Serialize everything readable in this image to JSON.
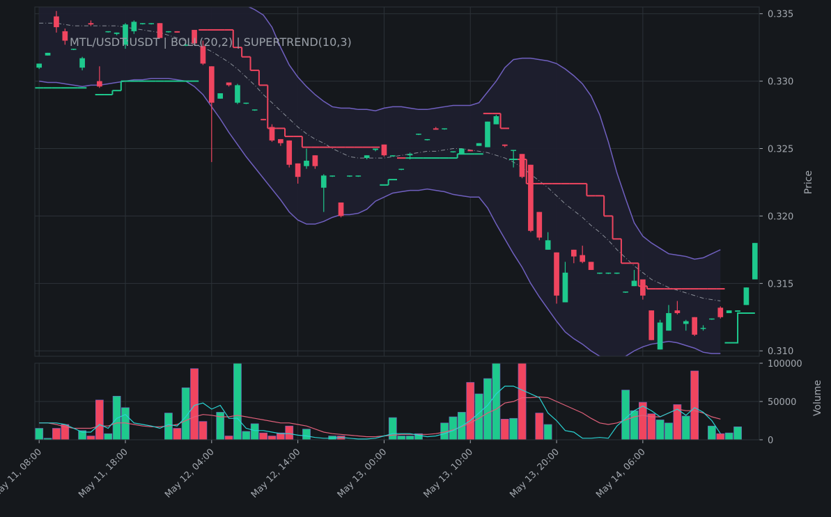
{
  "chart_data": {
    "type": "candlestick",
    "title": "MTL/USDT:USDT | BOLL(20,2) | SUPERTREND(10,3)",
    "colors": {
      "background": "#15181c",
      "grid": "#2c3238",
      "up": "#1ec98d",
      "down": "#f0455f",
      "bollinger": "#7060c0",
      "bollinger_fill": "#1e1f2e",
      "bollinger_mid": "#8a8f98",
      "volume_ma_fast": "#2ad4d4",
      "volume_ma_slow": "#e0607a",
      "text": "#a4a9b0"
    },
    "price_axis": {
      "label": "Price",
      "ticks": [
        "0.310",
        "0.315",
        "0.320",
        "0.325",
        "0.330",
        "0.335"
      ],
      "ylim": [
        0.3096,
        0.3355
      ]
    },
    "volume_axis": {
      "label": "Volume",
      "ticks": [
        "0",
        "50000",
        "100000"
      ],
      "ylim": [
        0,
        100000
      ]
    },
    "x_axis": {
      "tick_labels": [
        "May 11, 08:00",
        "May 11, 18:00",
        "May 12, 04:00",
        "May 12, 14:00",
        "May 13, 00:00",
        "May 13, 10:00",
        "May 13, 20:00",
        "May 14, 06:00"
      ],
      "tick_index": [
        0,
        10,
        20,
        30,
        40,
        50,
        60,
        70
      ],
      "interval_hours": 1,
      "candle_count": 80
    },
    "candles": [
      [
        0.331,
        0.3313,
        0.3309,
        0.3313
      ],
      [
        0.3319,
        0.3321,
        0.3319,
        0.3321
      ],
      [
        0.3348,
        0.3352,
        0.3336,
        0.334
      ],
      [
        0.3337,
        0.3339,
        0.3327,
        0.333
      ],
      [
        0.3324,
        0.3324,
        0.3323,
        0.3324
      ],
      [
        0.331,
        0.3318,
        0.3308,
        0.3317
      ],
      [
        0.3343,
        0.3345,
        0.3341,
        0.3342
      ],
      [
        0.33,
        0.3311,
        0.3295,
        0.3296
      ],
      [
        0.3337,
        0.3337,
        0.3336,
        0.3337
      ],
      [
        0.3335,
        0.3336,
        0.3334,
        0.3336
      ],
      [
        0.3327,
        0.3343,
        0.3324,
        0.3342
      ],
      [
        0.3337,
        0.3345,
        0.3335,
        0.3344
      ],
      [
        0.3343,
        0.3343,
        0.3342,
        0.3343
      ],
      [
        0.3343,
        0.3343,
        0.3342,
        0.3343
      ],
      [
        0.3343,
        0.3343,
        0.3332,
        0.3332
      ],
      [
        0.3337,
        0.3337,
        0.3336,
        0.3337
      ],
      [
        0.3337,
        0.3337,
        0.3336,
        0.3336
      ],
      [
        0.3327,
        0.3328,
        0.3326,
        0.3327
      ],
      [
        0.3338,
        0.3338,
        0.3327,
        0.3328
      ],
      [
        0.3326,
        0.333,
        0.3312,
        0.3313
      ],
      [
        0.3311,
        0.3311,
        0.324,
        0.3284
      ],
      [
        0.3287,
        0.3291,
        0.3287,
        0.3291
      ],
      [
        0.3299,
        0.3299,
        0.3296,
        0.3297
      ],
      [
        0.3284,
        0.3298,
        0.3283,
        0.3297
      ],
      [
        0.3284,
        0.3284,
        0.3283,
        0.3284
      ],
      [
        0.3279,
        0.3279,
        0.3278,
        0.3279
      ],
      [
        0.3272,
        0.3272,
        0.3271,
        0.3271
      ],
      [
        0.3266,
        0.3268,
        0.3255,
        0.3256
      ],
      [
        0.3257,
        0.3257,
        0.3252,
        0.3254
      ],
      [
        0.3256,
        0.3256,
        0.3236,
        0.3238
      ],
      [
        0.3239,
        0.3239,
        0.3224,
        0.3229
      ],
      [
        0.3237,
        0.325,
        0.3235,
        0.3241
      ],
      [
        0.3245,
        0.3245,
        0.3235,
        0.3237
      ],
      [
        0.3221,
        0.3231,
        0.3203,
        0.323
      ],
      [
        0.323,
        0.323,
        0.3229,
        0.323
      ],
      [
        0.321,
        0.321,
        0.3199,
        0.32
      ],
      [
        0.323,
        0.323,
        0.3229,
        0.323
      ],
      [
        0.323,
        0.323,
        0.3229,
        0.323
      ],
      [
        0.3243,
        0.3245,
        0.3242,
        0.3245
      ],
      [
        0.3249,
        0.325,
        0.3248,
        0.325
      ],
      [
        0.3253,
        0.3253,
        0.3244,
        0.3245
      ],
      [
        0.3245,
        0.3245,
        0.3244,
        0.3245
      ],
      [
        0.3235,
        0.3235,
        0.3234,
        0.3235
      ],
      [
        0.3245,
        0.3247,
        0.3242,
        0.3246
      ],
      [
        0.3261,
        0.3261,
        0.326,
        0.3261
      ],
      [
        0.3257,
        0.3257,
        0.3256,
        0.3257
      ],
      [
        0.3265,
        0.3266,
        0.3264,
        0.3264
      ],
      [
        0.3265,
        0.3265,
        0.3264,
        0.3265
      ],
      [
        0.3248,
        0.3248,
        0.3247,
        0.3248
      ],
      [
        0.3246,
        0.325,
        0.3246,
        0.325
      ],
      [
        0.3249,
        0.3249,
        0.3248,
        0.3248
      ],
      [
        0.3252,
        0.3254,
        0.3252,
        0.3254
      ],
      [
        0.3251,
        0.327,
        0.3251,
        0.327
      ],
      [
        0.3268,
        0.3275,
        0.3268,
        0.3274
      ],
      [
        0.3253,
        0.3253,
        0.3251,
        0.3252
      ],
      [
        0.3249,
        0.3249,
        0.3236,
        0.3249
      ],
      [
        0.3246,
        0.3246,
        0.3228,
        0.3229
      ],
      [
        0.3238,
        0.3238,
        0.3188,
        0.3189
      ],
      [
        0.3203,
        0.3203,
        0.3182,
        0.3184
      ],
      [
        0.3175,
        0.3188,
        0.3175,
        0.3182
      ],
      [
        0.3173,
        0.3173,
        0.3135,
        0.3141
      ],
      [
        0.3136,
        0.3166,
        0.3136,
        0.3158
      ],
      [
        0.3175,
        0.3175,
        0.3165,
        0.317
      ],
      [
        0.3171,
        0.3178,
        0.3165,
        0.3166
      ],
      [
        0.3166,
        0.3166,
        0.316,
        0.316
      ],
      [
        0.3158,
        0.3158,
        0.3157,
        0.3158
      ],
      [
        0.3158,
        0.3158,
        0.3157,
        0.3158
      ],
      [
        0.3158,
        0.3158,
        0.3157,
        0.3158
      ],
      [
        0.3144,
        0.3144,
        0.3143,
        0.3144
      ],
      [
        0.3148,
        0.316,
        0.3148,
        0.3152
      ],
      [
        0.3153,
        0.3153,
        0.3138,
        0.3141
      ],
      [
        0.313,
        0.313,
        0.3108,
        0.3108
      ],
      [
        0.3101,
        0.3123,
        0.3101,
        0.3121
      ],
      [
        0.3115,
        0.3134,
        0.3115,
        0.3128
      ],
      [
        0.313,
        0.3137,
        0.3127,
        0.3128
      ],
      [
        0.312,
        0.3123,
        0.3115,
        0.3122
      ],
      [
        0.3125,
        0.3125,
        0.3111,
        0.3112
      ],
      [
        0.3117,
        0.3119,
        0.3115,
        0.3117
      ],
      [
        0.3124,
        0.3124,
        0.3123,
        0.3124
      ],
      [
        0.3132,
        0.3133,
        0.3124,
        0.3125
      ]
    ],
    "extra_candles": [
      [
        0.3128,
        0.313,
        0.3128,
        0.313
      ],
      [
        0.3129,
        0.313,
        0.3129,
        0.313
      ],
      [
        0.3134,
        0.3147,
        0.3134,
        0.3147
      ],
      [
        0.3153,
        0.318,
        0.3153,
        0.318
      ]
    ],
    "volume": [
      15000,
      2000,
      15000,
      20000,
      0,
      12000,
      5000,
      52000,
      8000,
      57000,
      42000,
      0,
      0,
      0,
      0,
      35000,
      15000,
      68000,
      93000,
      24000,
      0,
      36000,
      5000,
      100000,
      11000,
      21000,
      9000,
      5000,
      9000,
      18000,
      0,
      14000,
      0,
      0,
      5000,
      5000,
      0,
      0,
      0,
      0,
      0,
      29000,
      5000,
      5000,
      8000,
      0,
      0,
      22000,
      30000,
      36000,
      75000,
      60000,
      80000,
      100000,
      27000,
      28000,
      100000,
      0,
      35000,
      20000,
      0,
      0,
      0,
      0,
      0,
      0,
      0,
      0,
      65000,
      38000,
      49000,
      34000,
      26000,
      22000,
      46000,
      31000,
      90000,
      0,
      18000,
      8000
    ],
    "extra_volume": [
      9000,
      17000
    ],
    "bollinger_upper": [
      0.3378,
      0.3376,
      0.3373,
      0.337,
      0.3367,
      0.3365,
      0.3362,
      0.3362,
      0.3362,
      0.3361,
      0.3358,
      0.3357,
      0.3356,
      0.3356,
      0.3357,
      0.3358,
      0.336,
      0.3362,
      0.336,
      0.3359,
      0.3361,
      0.3361,
      0.3359,
      0.3357,
      0.3356,
      0.3353,
      0.3349,
      0.334,
      0.3325,
      0.3312,
      0.3303,
      0.3296,
      0.329,
      0.3285,
      0.3281,
      0.328,
      0.328,
      0.3279,
      0.3279,
      0.3278,
      0.328,
      0.3281,
      0.3281,
      0.328,
      0.3279,
      0.3279,
      0.328,
      0.3281,
      0.3282,
      0.3282,
      0.3282,
      0.3284,
      0.3292,
      0.33,
      0.331,
      0.3316,
      0.3317,
      0.3317,
      0.3316,
      0.3315,
      0.3313,
      0.3309,
      0.3304,
      0.3298,
      0.3289,
      0.3275,
      0.3255,
      0.3232,
      0.3213,
      0.3195,
      0.3185,
      0.318,
      0.3176,
      0.3172,
      0.3171,
      0.317,
      0.3168,
      0.3169,
      0.3172,
      0.3175
    ],
    "bollinger_mid": [
      0.3343,
      0.3343,
      0.3343,
      0.3342,
      0.3341,
      0.3341,
      0.3341,
      0.3341,
      0.3341,
      0.3341,
      0.334,
      0.3339,
      0.3338,
      0.3337,
      0.3336,
      0.3334,
      0.3332,
      0.333,
      0.3327,
      0.3325,
      0.3322,
      0.3318,
      0.3314,
      0.3309,
      0.3303,
      0.3297,
      0.329,
      0.3284,
      0.3278,
      0.3272,
      0.3266,
      0.3261,
      0.3257,
      0.3254,
      0.325,
      0.3247,
      0.3244,
      0.3243,
      0.3243,
      0.3243,
      0.3243,
      0.3244,
      0.3245,
      0.3246,
      0.3247,
      0.3248,
      0.3248,
      0.3249,
      0.325,
      0.325,
      0.3249,
      0.3248,
      0.3247,
      0.3245,
      0.3243,
      0.324,
      0.3236,
      0.3231,
      0.3226,
      0.3221,
      0.3215,
      0.3209,
      0.3204,
      0.3199,
      0.3193,
      0.3188,
      0.3182,
      0.3175,
      0.3169,
      0.3163,
      0.3158,
      0.3153,
      0.315,
      0.3147,
      0.3145,
      0.3143,
      0.3141,
      0.3139,
      0.3138,
      0.3137
    ],
    "bollinger_lower": [
      0.33,
      0.3299,
      0.3299,
      0.3298,
      0.3297,
      0.3296,
      0.3297,
      0.3297,
      0.3298,
      0.3299,
      0.33,
      0.3301,
      0.3301,
      0.3302,
      0.3302,
      0.3302,
      0.3301,
      0.33,
      0.3296,
      0.329,
      0.3281,
      0.3272,
      0.3262,
      0.3253,
      0.3244,
      0.3236,
      0.3228,
      0.322,
      0.3212,
      0.3203,
      0.3197,
      0.3194,
      0.3194,
      0.3196,
      0.3199,
      0.3201,
      0.3201,
      0.3202,
      0.3205,
      0.3211,
      0.3214,
      0.3217,
      0.3218,
      0.3219,
      0.3219,
      0.322,
      0.3219,
      0.3218,
      0.3216,
      0.3215,
      0.3214,
      0.3214,
      0.3206,
      0.3194,
      0.3183,
      0.3172,
      0.3162,
      0.315,
      0.314,
      0.3131,
      0.3122,
      0.3114,
      0.3109,
      0.3105,
      0.31,
      0.3096,
      0.3095,
      0.3095,
      0.3096,
      0.31,
      0.3103,
      0.3105,
      0.3106,
      0.3107,
      0.3106,
      0.3104,
      0.3102,
      0.3099,
      0.3098,
      0.3098
    ],
    "supertrend": [
      0.3295,
      0.3295,
      0.3295,
      0.3295,
      0.3295,
      0.3295,
      null,
      0.329,
      0.329,
      0.3293,
      0.33,
      0.33,
      0.33,
      0.33,
      0.33,
      0.33,
      0.33,
      0.33,
      0.33,
      0.3338,
      0.3338,
      0.3338,
      0.3338,
      0.3325,
      0.3318,
      0.3308,
      0.3297,
      0.3265,
      0.3265,
      0.3259,
      0.3259,
      0.3251,
      0.3251,
      0.3251,
      0.3251,
      0.3251,
      0.3251,
      0.3251,
      0.3251,
      0.3251,
      0.3223,
      0.3227,
      0.3243,
      0.3243,
      0.3243,
      0.3243,
      0.3243,
      0.3243,
      0.3243,
      0.3246,
      0.3246,
      0.3246,
      0.3276,
      0.3276,
      0.3265,
      0.3242,
      0.3242,
      0.3224,
      0.3224,
      0.3224,
      0.3224,
      0.3224,
      0.3224,
      0.3224,
      0.3215,
      0.3215,
      0.32,
      0.3183,
      0.3165,
      0.3165,
      0.3148,
      0.3146,
      0.3146,
      0.3146,
      0.3146,
      0.3146,
      0.3146,
      0.3146,
      0.3146,
      0.3146
    ],
    "supertrend_tail": [
      0.3106,
      0.3128
    ],
    "volume_ma_fast": [
      22000,
      22000,
      22000,
      20000,
      15000,
      10000,
      10000,
      20000,
      15000,
      28000,
      33000,
      22000,
      20000,
      18000,
      15000,
      20000,
      18000,
      30000,
      45000,
      48000,
      40000,
      45000,
      28000,
      28000,
      15000,
      12000,
      12000,
      10000,
      8000,
      8000,
      6000,
      5000,
      3000,
      2000,
      2000,
      3000,
      2000,
      1000,
      1000,
      2000,
      5000,
      8000,
      8000,
      8000,
      6000,
      4000,
      5000,
      8000,
      12000,
      18000,
      25000,
      35000,
      45000,
      60000,
      70000,
      70000,
      65000,
      60000,
      55000,
      35000,
      25000,
      12000,
      10000,
      2000,
      2000,
      3000,
      2000,
      18000,
      28000,
      38000,
      44000,
      38000,
      30000,
      35000,
      40000,
      32000,
      42000,
      36000,
      25000,
      8000
    ],
    "volume_ma_slow": [
      22000,
      22000,
      20000,
      17000,
      15000,
      15000,
      15000,
      18000,
      18000,
      22000,
      22000,
      20000,
      18000,
      17000,
      17000,
      18000,
      20000,
      25000,
      30000,
      33000,
      32000,
      30000,
      30000,
      32000,
      30000,
      28000,
      26000,
      24000,
      22000,
      22000,
      20000,
      18000,
      14000,
      10000,
      8000,
      7000,
      6000,
      5000,
      4000,
      4000,
      5000,
      6000,
      7000,
      7000,
      7000,
      7000,
      8000,
      10000,
      13000,
      17000,
      22000,
      28000,
      35000,
      40000,
      48000,
      50000,
      55000,
      55000,
      56000,
      55000,
      50000,
      45000,
      40000,
      35000,
      28000,
      22000,
      20000,
      22000,
      26000,
      30000,
      32000,
      30000,
      30000,
      35000,
      40000,
      38000,
      38000,
      35000,
      30000,
      27000
    ]
  }
}
